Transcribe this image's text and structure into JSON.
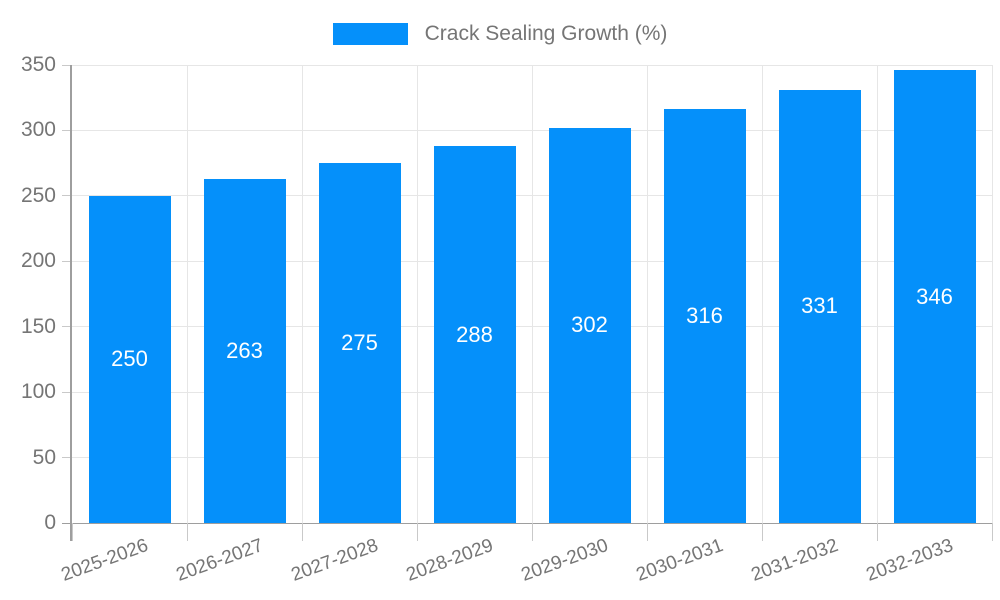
{
  "chart_data": {
    "type": "bar",
    "title": "Crack Sealing Growth (%)",
    "legend_position": "top",
    "categories": [
      "2025-2026",
      "2026-2027",
      "2027-2028",
      "2028-2029",
      "2029-2030",
      "2030-2031",
      "2031-2032",
      "2032-2033"
    ],
    "values": [
      250,
      263,
      275,
      288,
      302,
      316,
      331,
      346
    ],
    "series_name": "Crack Sealing Growth (%)",
    "xlabel": "",
    "ylabel": "",
    "ylim": [
      0,
      350
    ],
    "yticks": [
      0,
      50,
      100,
      150,
      200,
      250,
      300,
      350
    ],
    "grid": "on",
    "x_label_rotation_deg": -20,
    "colors": {
      "bar": "#0590fa",
      "value_label": "#ffffff",
      "axis_text": "#757575",
      "gridline": "#e6e6e6",
      "axis_line": "#9e9e9e",
      "tick": "#c9c9c9"
    }
  }
}
